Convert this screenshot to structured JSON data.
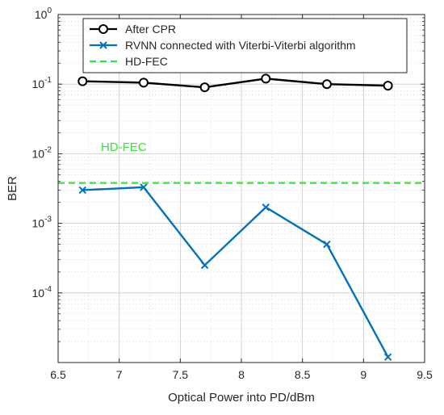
{
  "chart_data": {
    "type": "line",
    "xlabel": "Optical Power into PD/dBm",
    "ylabel": "BER",
    "xlim": [
      6.5,
      9.5
    ],
    "ylim": [
      1e-05,
      1
    ],
    "y_scale": "log",
    "x_ticks": [
      "6.5",
      "7",
      "7.5",
      "8",
      "8.5",
      "9",
      "9.5"
    ],
    "x_tick_values": [
      6.5,
      7,
      7.5,
      8,
      8.5,
      9,
      9.5
    ],
    "y_ticks": [
      {
        "value": 1,
        "base": "10",
        "exp": "0"
      },
      {
        "value": 0.1,
        "base": "10",
        "exp": "-1"
      },
      {
        "value": 0.01,
        "base": "10",
        "exp": "-2"
      },
      {
        "value": 0.001,
        "base": "10",
        "exp": "-3"
      },
      {
        "value": 0.0001,
        "base": "10",
        "exp": "-4"
      }
    ],
    "grid": true,
    "minor_grid": true,
    "legend_position": "top",
    "series": [
      {
        "name": "After CPR",
        "color": "#000000",
        "marker": "circle",
        "x": [
          6.7,
          7.2,
          7.7,
          8.2,
          8.7,
          9.2
        ],
        "y": [
          0.11,
          0.105,
          0.09,
          0.12,
          0.1,
          0.095
        ]
      },
      {
        "name": "RVNN connected with Viterbi-Viterbi algorithm",
        "color": "#0072BD",
        "marker": "x",
        "x": [
          6.7,
          7.2,
          7.7,
          8.2,
          8.7,
          9.2
        ],
        "y": [
          0.003,
          0.0033,
          0.00025,
          0.0017,
          0.0005,
          1.2e-05
        ]
      },
      {
        "name": "HD-FEC",
        "color": "#33E633",
        "style": "dashed",
        "y_constant": 0.0038
      }
    ],
    "annotations": [
      {
        "text": "HD-FEC",
        "x": 6.85,
        "y": 0.011,
        "color": "#33E633"
      }
    ]
  }
}
